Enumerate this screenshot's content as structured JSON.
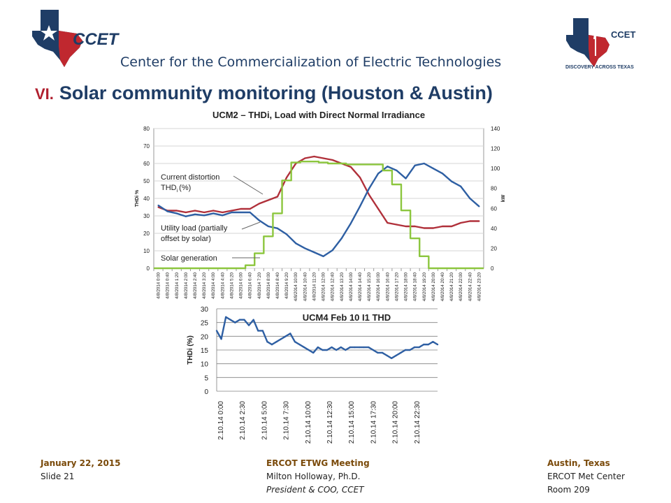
{
  "header": {
    "logo_left_text": "CCET",
    "logo_right_text": "CCET",
    "logo_right_tagline": "DISCOVERY ACROSS TEXAS",
    "center_name": "Center for the Commercialization of Electric Technologies",
    "title_number": "VI.",
    "title": "Solar community monitoring (Houston & Austin)"
  },
  "colors": {
    "navy": "#1f3d66",
    "red": "#b01f2e",
    "series_thd": "#b0303a",
    "series_load": "#2e5fa3",
    "series_solar": "#8cc63e"
  },
  "chart_data": [
    {
      "type": "line",
      "title": "UCM2 – THDi, Load with Direct Normal Irradiance",
      "ylabel": "THDi %",
      "y2label": "kW",
      "ylim": [
        0,
        80
      ],
      "y2lim": [
        0,
        140
      ],
      "yticks": [
        "0",
        "10",
        "20",
        "30",
        "40",
        "50",
        "60",
        "70",
        "80"
      ],
      "y2ticks": [
        "0",
        "20",
        "40",
        "60",
        "80",
        "100",
        "120",
        "140"
      ],
      "grid": true,
      "categories": [
        "4/8/2014 0:00",
        "4/8/2014 0:40",
        "4/8/2014 1:20",
        "4/8/2014 2:00",
        "4/8/2014 2:40",
        "4/8/2014 3:20",
        "4/8/2014 4:00",
        "4/8/2014 4:40",
        "4/8/2014 5:20",
        "4/8/2014 6:00",
        "4/8/2014 6:40",
        "4/8/2014 7:20",
        "4/8/2014 8:00",
        "4/8/2014 8:40",
        "4/8/2014 9:20",
        "4/8/2014 10:00",
        "4/8/2014 10:40",
        "4/8/2014 11:20",
        "4/8/2014 12:00",
        "4/8/2014 12:40",
        "4/8/2014 13:20",
        "4/8/2014 14:00",
        "4/8/2014 14:40",
        "4/8/2014 15:20",
        "4/8/2014 16:00",
        "4/8/2014 16:40",
        "4/8/2014 17:20",
        "4/8/2014 18:00",
        "4/8/2014 18:40",
        "4/8/2014 19:20",
        "4/8/2014 20:00",
        "4/8/2014 20:40",
        "4/8/2014 21:20",
        "4/8/2014 22:00",
        "4/8/2014 22:40",
        "4/8/2014 23:20"
      ],
      "series": [
        {
          "name": "Current distortion THDi (%)",
          "axis": "left",
          "values": [
            35,
            33,
            33,
            32,
            33,
            32,
            33,
            32,
            33,
            34,
            34,
            37,
            39,
            41,
            52,
            60,
            63,
            64,
            63,
            62,
            60,
            58,
            52,
            42,
            34,
            26,
            25,
            24,
            24,
            23,
            23,
            24,
            24,
            26,
            27,
            27
          ]
        },
        {
          "name": "Utility load (partially offset by solar)",
          "axis": "right",
          "values": [
            63,
            57,
            55,
            52,
            54,
            53,
            55,
            53,
            56,
            56,
            56,
            48,
            42,
            40,
            34,
            25,
            20,
            16,
            12,
            18,
            30,
            45,
            62,
            80,
            95,
            102,
            98,
            90,
            103,
            105,
            100,
            95,
            87,
            82,
            70,
            62
          ]
        },
        {
          "name": "Solar generation",
          "axis": "right",
          "values": [
            0,
            0,
            0,
            0,
            0,
            0,
            0,
            0,
            0,
            0,
            3,
            15,
            32,
            55,
            88,
            106,
            107,
            107,
            106,
            105,
            105,
            104,
            104,
            104,
            104,
            98,
            84,
            58,
            30,
            12,
            0,
            0,
            0,
            0,
            0,
            0
          ]
        }
      ],
      "annotations": [
        "Current distortion",
        "THD",
        "i",
        "(%)",
        "Utility load (partially",
        "offset by solar)",
        "Solar generation"
      ]
    },
    {
      "type": "line",
      "title": "UCM4 Feb 10 I1 THD",
      "ylabel": "THDi (%)",
      "ylim": [
        0,
        30
      ],
      "yticks": [
        "0",
        "5",
        "10",
        "15",
        "20",
        "25",
        "30"
      ],
      "grid": true,
      "xticks": [
        "2.10.14 0:00",
        "2.10.14 2:30",
        "2.10.14 5:00",
        "2.10.14 7:30",
        "2.10.14 10:00",
        "2.10.14 12:30",
        "2.10.14 15:00",
        "2.10.14 17:30",
        "2.10.14 20:00",
        "2.10.14 22:30"
      ],
      "x": [
        0,
        0.5,
        1,
        1.5,
        2,
        2.5,
        3,
        3.5,
        4,
        4.5,
        5,
        5.5,
        6,
        6.5,
        7,
        7.5,
        8,
        8.5,
        9,
        9.5,
        10,
        10.5,
        11,
        11.5,
        12,
        12.5,
        13,
        13.5,
        14,
        14.5,
        15,
        15.5,
        16,
        16.5,
        17,
        17.5,
        18,
        18.5,
        19,
        19.5,
        20,
        20.5,
        21,
        21.5,
        22,
        22.5,
        23,
        23.5,
        24
      ],
      "values": [
        22,
        19,
        27,
        26,
        25,
        26,
        26,
        24,
        26,
        22,
        22,
        18,
        17,
        18,
        19,
        20,
        21,
        18,
        17,
        16,
        15,
        14,
        16,
        15,
        15,
        16,
        15,
        16,
        15,
        16,
        16,
        16,
        16,
        16,
        15,
        14,
        14,
        13,
        12,
        13,
        14,
        15,
        15,
        16,
        16,
        17,
        17,
        18,
        17
      ]
    }
  ],
  "footer": {
    "left": {
      "date": "January 22, 2015",
      "slide": "Slide 21"
    },
    "center": {
      "meeting": "ERCOT ETWG Meeting",
      "presenter": "Milton Holloway, Ph.D.",
      "role": "President & COO, CCET"
    },
    "right": {
      "city": "Austin, Texas",
      "place": "ERCOT Met Center",
      "room": "Room 209"
    }
  }
}
